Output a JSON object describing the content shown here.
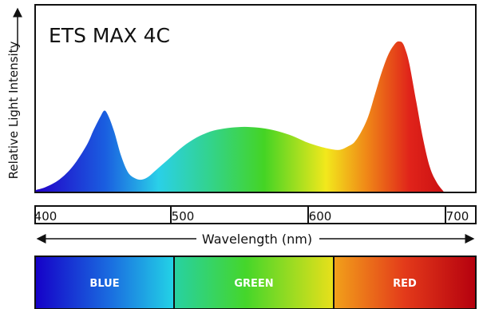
{
  "chart_data": {
    "type": "area",
    "title": "ETS MAX 4C",
    "xlabel": "Wavelength (nm)",
    "ylabel": "Relative Light Intensity",
    "xlim": [
      380,
      710
    ],
    "ylim": [
      0,
      1
    ],
    "x_ticks": [
      400,
      500,
      600,
      700
    ],
    "x_tick_labels": [
      "400",
      "500",
      "600",
      "700"
    ],
    "grid": false,
    "legend": "none",
    "series": [
      {
        "x": [
          380,
          390,
          400,
          410,
          420,
          430,
          435,
          440,
          443,
          446,
          450,
          455,
          460,
          465,
          470,
          475,
          480,
          490,
          500,
          510,
          520,
          530,
          540,
          550,
          560,
          570,
          580,
          590,
          600,
          610,
          615,
          620,
          625,
          630,
          635,
          640,
          645,
          650,
          655,
          658,
          660,
          662,
          665,
          670,
          675,
          680,
          685,
          690
        ],
        "y": [
          0.0,
          0.01,
          0.03,
          0.08,
          0.17,
          0.31,
          0.41,
          0.5,
          0.54,
          0.5,
          0.4,
          0.24,
          0.13,
          0.09,
          0.08,
          0.1,
          0.14,
          0.22,
          0.3,
          0.36,
          0.4,
          0.42,
          0.43,
          0.43,
          0.42,
          0.4,
          0.37,
          0.33,
          0.3,
          0.28,
          0.28,
          0.3,
          0.33,
          0.4,
          0.5,
          0.65,
          0.8,
          0.92,
          0.99,
          1.0,
          0.99,
          0.95,
          0.85,
          0.6,
          0.35,
          0.16,
          0.06,
          0.0
        ]
      }
    ],
    "color_bands": [
      {
        "label": "BLUE",
        "from": 400,
        "to": 490,
        "colors": [
          "#1500c8",
          "#1a6fe0",
          "#23d3e6"
        ]
      },
      {
        "label": "GREEN",
        "from": 490,
        "to": 590,
        "colors": [
          "#27d1a3",
          "#45d62a",
          "#e9e01a"
        ]
      },
      {
        "label": "RED",
        "from": 590,
        "to": 700,
        "colors": [
          "#f2a11a",
          "#e33a1a",
          "#b5000e"
        ]
      }
    ],
    "spectrum_colors": {
      "violet": "#2200c8",
      "blue": "#1a5fe0",
      "cyan": "#2ad0e8",
      "green": "#33d33a",
      "yellow": "#f2e81c",
      "orange": "#f08a17",
      "red": "#e0231a",
      "deep_red": "#b8000c"
    }
  }
}
